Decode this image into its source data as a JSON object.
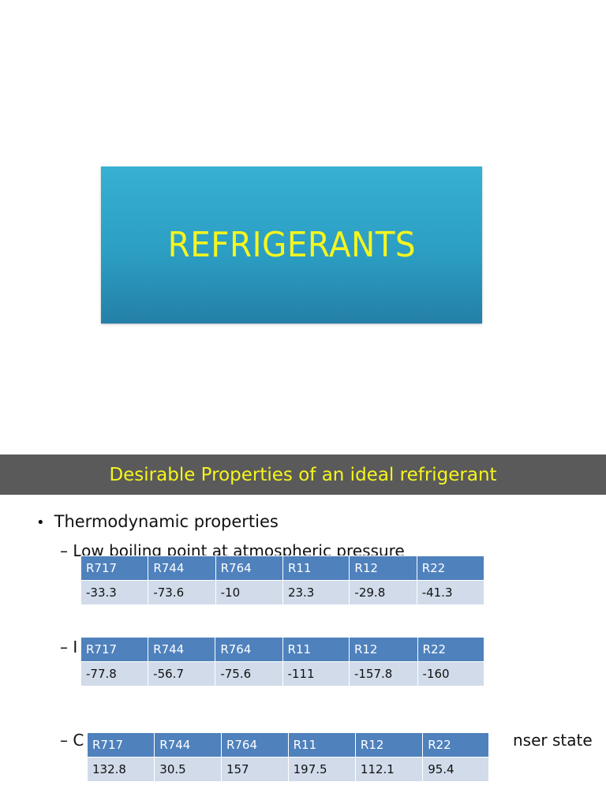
{
  "slide1": {
    "title": "REFRIGERANTS"
  },
  "slide2": {
    "header": "Desirable Properties of an  ideal refrigerant",
    "bullet": "Thermodynamic properties",
    "dash": "–",
    "sub1": "Low boiling point at atmospheric pressure",
    "sub2_visible": "I",
    "sub3_visible": "C",
    "sub3_tail": "nser state",
    "tables": [
      {
        "header": [
          "R717",
          "R744",
          "R764",
          "R11",
          "R12",
          "R22"
        ],
        "values": [
          "-33.3",
          "-73.6",
          "-10",
          "23.3",
          "-29.8",
          "-41.3"
        ]
      },
      {
        "header": [
          "R717",
          "R744",
          "R764",
          "R11",
          "R12",
          "R22"
        ],
        "values": [
          "-77.8",
          "-56.7",
          "-75.6",
          "-111",
          "-157.8",
          "-160"
        ]
      },
      {
        "header": [
          "R717",
          "R744",
          "R764",
          "R11",
          "R12",
          "R22"
        ],
        "values": [
          "132.8",
          "30.5",
          "157",
          "197.5",
          "112.1",
          "95.4"
        ]
      }
    ]
  },
  "colors": {
    "title_yellow": "#f5f51f",
    "table_header": "#4f81bd",
    "table_row": "#d1dbea",
    "header_band": "#5a5a5a"
  }
}
